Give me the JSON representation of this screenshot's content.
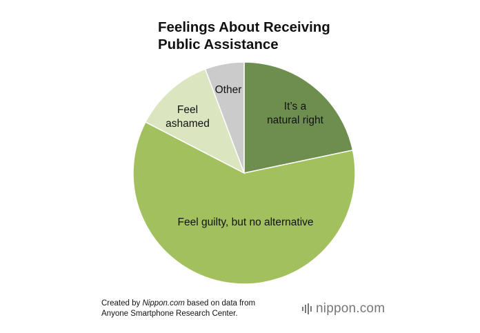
{
  "title_lines": [
    "Feelings About Receiving",
    "Public Assistance"
  ],
  "chart_data": {
    "type": "pie",
    "title": "Feelings About Receiving Public Assistance",
    "start_angle_deg": 0,
    "direction": "clockwise",
    "slices": [
      {
        "label_lines": [
          "It’s a",
          "natural right"
        ],
        "value": 21.7,
        "color": "#6e8e50"
      },
      {
        "label_lines": [
          "Feel guilty, but no alternative"
        ],
        "value": 60.9,
        "color": "#a3c05e"
      },
      {
        "label_lines": [
          "Feel",
          "ashamed"
        ],
        "value": 11.7,
        "color": "#dbe6c0"
      },
      {
        "label_lines": [
          "Other"
        ],
        "value": 5.7,
        "color": "#cbcbcb"
      }
    ]
  },
  "footer": {
    "prefix": "Created by ",
    "source_name": "Nippon.com",
    "suffix": " based on data from",
    "line2": "Anyone Smartphone Research Center."
  },
  "brand": {
    "text": "nippon.com",
    "icon": "nippon-logo-icon",
    "color": "#777777"
  }
}
